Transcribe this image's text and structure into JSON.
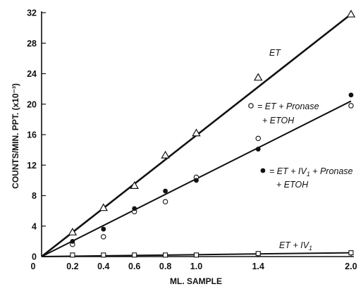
{
  "chart_data": {
    "type": "scatter",
    "xlabel": "ML. SAMPLE",
    "ylabel": "COUNTS/MIN. PPT. (x10⁻³)",
    "xlim": [
      0,
      2.0
    ],
    "ylim": [
      0,
      32
    ],
    "x_ticks": [
      {
        "value": 0,
        "label": "0"
      },
      {
        "value": 0.2,
        "label": "0.2"
      },
      {
        "value": 0.4,
        "label": "0.4"
      },
      {
        "value": 0.6,
        "label": "0.6"
      },
      {
        "value": 0.8,
        "label": "0.8"
      },
      {
        "value": 1.0,
        "label": "1.0"
      },
      {
        "value": 1.4,
        "label": "1.4"
      },
      {
        "value": 2.0,
        "label": "2.0"
      }
    ],
    "y_ticks": [
      {
        "value": 0,
        "label": "0"
      },
      {
        "value": 4,
        "label": "4"
      },
      {
        "value": 8,
        "label": "8"
      },
      {
        "value": 12,
        "label": "12"
      },
      {
        "value": 16,
        "label": "16"
      },
      {
        "value": 20,
        "label": "20"
      },
      {
        "value": 24,
        "label": "24"
      },
      {
        "value": 28,
        "label": "28"
      },
      {
        "value": 32,
        "label": "32"
      }
    ],
    "series": [
      {
        "key": "et",
        "label_parts": [
          "ET"
        ],
        "marker": "triangle",
        "points": [
          [
            0.2,
            3.2
          ],
          [
            0.4,
            6.4
          ],
          [
            0.6,
            9.3
          ],
          [
            0.8,
            13.3
          ],
          [
            1.0,
            16.2
          ],
          [
            1.4,
            23.5
          ],
          [
            2.0,
            31.8
          ]
        ],
        "fit": [
          [
            0,
            0
          ],
          [
            2.0,
            31.8
          ]
        ]
      },
      {
        "key": "et-pronase-etoh",
        "label_parts": [
          "= ET + Pronase",
          "+ ETOH"
        ],
        "marker": "open-circle",
        "points": [
          [
            0.2,
            1.6
          ],
          [
            0.4,
            2.6
          ],
          [
            0.6,
            5.9
          ],
          [
            0.8,
            7.2
          ],
          [
            1.0,
            10.4
          ],
          [
            1.4,
            15.5
          ],
          [
            2.0,
            19.8
          ]
        ],
        "fit": [
          [
            0,
            0
          ],
          [
            2.0,
            20.4
          ]
        ]
      },
      {
        "key": "et-iv1-pronase-etoh",
        "label_parts": [
          "= ET + IV",
          "1",
          " + Pronase",
          "+ ETOH"
        ],
        "marker": "filled-circle",
        "points": [
          [
            0.2,
            2.0
          ],
          [
            0.4,
            3.6
          ],
          [
            0.6,
            6.3
          ],
          [
            0.8,
            8.6
          ],
          [
            1.0,
            10.0
          ],
          [
            1.4,
            14.1
          ],
          [
            2.0,
            21.2
          ]
        ],
        "fit": [
          [
            0,
            0
          ],
          [
            2.0,
            20.4
          ]
        ]
      },
      {
        "key": "et-iv1",
        "label_parts": [
          "ET + IV",
          "1"
        ],
        "marker": "square",
        "points": [
          [
            0.2,
            0.2
          ],
          [
            0.4,
            0.2
          ],
          [
            0.6,
            0.2
          ],
          [
            0.8,
            0.2
          ],
          [
            1.0,
            0.2
          ],
          [
            1.4,
            0.4
          ],
          [
            2.0,
            0.5
          ]
        ],
        "fit": [
          [
            0,
            0
          ],
          [
            2.0,
            0.5
          ]
        ]
      }
    ],
    "grid": false,
    "legend": "inline annotations"
  }
}
